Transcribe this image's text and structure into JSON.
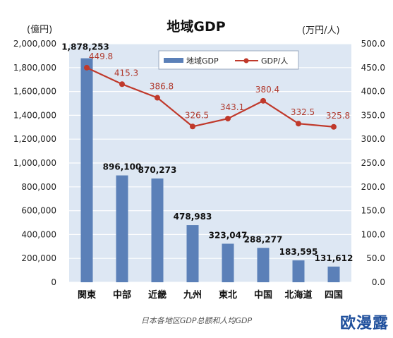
{
  "chart_data": {
    "type": "bar+line",
    "title": "地域GDP",
    "categories": [
      "関東",
      "中部",
      "近畿",
      "九州",
      "東北",
      "中国",
      "北海道",
      "四国"
    ],
    "series": [
      {
        "name": "地域GDP",
        "type": "bar",
        "axis": "left",
        "values": [
          1878253,
          896100,
          870273,
          478983,
          323047,
          288277,
          183595,
          131612
        ],
        "labels": [
          "1,878,253",
          "896,100",
          "870,273",
          "478,983",
          "323,047",
          "288,277",
          "183,595",
          "131,612"
        ],
        "color": "#5b80b8"
      },
      {
        "name": "GDP/人",
        "type": "line",
        "axis": "right",
        "values": [
          449.8,
          415.3,
          386.8,
          326.5,
          343.1,
          380.4,
          332.5,
          325.8
        ],
        "labels": [
          "449.8",
          "415.3",
          "386.8",
          "326.5",
          "343.1",
          "380.4",
          "332.5",
          "325.8"
        ],
        "color": "#c0392b"
      }
    ],
    "y_left": {
      "unit": "(億円)",
      "ylim": [
        0,
        2000000
      ],
      "ticks": [
        0,
        200000,
        400000,
        600000,
        800000,
        1000000,
        1200000,
        1400000,
        1600000,
        1800000,
        2000000
      ],
      "tick_labels": [
        "0",
        "200,000",
        "400,000",
        "600,000",
        "800,000",
        "1,000,000",
        "1,200,000",
        "1,400,000",
        "1,600,000",
        "1,800,000",
        "2,000,000"
      ]
    },
    "y_right": {
      "unit": "(万円/人)",
      "ylim": [
        0,
        500
      ],
      "ticks": [
        0,
        50,
        100,
        150,
        200,
        250,
        300,
        350,
        400,
        450,
        500
      ],
      "tick_labels": [
        "0.0",
        "50.0",
        "100.0",
        "150.0",
        "200.0",
        "250.0",
        "300.0",
        "350.0",
        "400.0",
        "450.0",
        "500.0"
      ]
    },
    "grid": true,
    "legend_position": "top-right"
  },
  "caption": "日本各地区GDP总额和人均GDP",
  "watermark": "欧漫露",
  "colors": {
    "plot_background": "#dde7f3",
    "gridline": "#ffffff",
    "bar": "#5b80b8",
    "line": "#c0392b",
    "line_label": "#b03a2e"
  }
}
